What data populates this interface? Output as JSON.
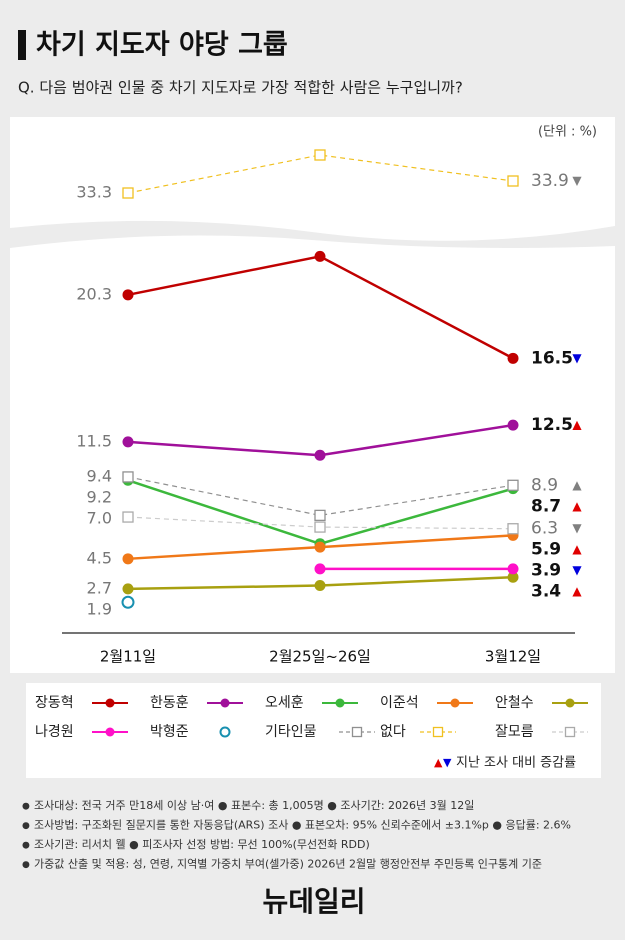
{
  "chart_data": {
    "type": "line",
    "title": "차기 지도자 야당 그룹",
    "subtitle": "Q. 다음 범야권 인물 중 차기 지도자로 가장 적합한 사람은 누구입니까?",
    "unit": "(단위 : %)",
    "categories": [
      "2월11일",
      "2월25일~26일",
      "3월12일"
    ],
    "ylim": [
      0,
      24
    ],
    "upper_ylim": [
      32,
      36
    ],
    "series": [
      {
        "name": "장동혁",
        "color": "#c00000",
        "marker": "circle",
        "values": [
          20.3,
          22.6,
          16.5
        ],
        "change": "▼",
        "change_color": "#0000dd"
      },
      {
        "name": "한동훈",
        "color": "#a0109a",
        "marker": "circle",
        "values": [
          11.5,
          10.7,
          12.5
        ],
        "change": "▲",
        "change_color": "#e00000"
      },
      {
        "name": "오세훈",
        "color": "#3cb83c",
        "marker": "circle",
        "values": [
          9.2,
          5.4,
          8.7
        ],
        "change": "▲",
        "change_color": "#e00000"
      },
      {
        "name": "이준석",
        "color": "#f07818",
        "marker": "circle",
        "values": [
          4.5,
          5.2,
          5.9
        ],
        "change": "▲",
        "change_color": "#e00000"
      },
      {
        "name": "안철수",
        "color": "#a8a010",
        "marker": "circle",
        "values": [
          2.7,
          2.9,
          3.4
        ],
        "change": "▲",
        "change_color": "#e00000"
      },
      {
        "name": "나경원",
        "color": "#ff10c8",
        "marker": "circle",
        "values": [
          null,
          3.9,
          3.9
        ],
        "change": "▼",
        "change_color": "#0000dd"
      },
      {
        "name": "박형준",
        "color": "#1890b0",
        "marker": "open-circle",
        "values": [
          1.9,
          null,
          null
        ]
      },
      {
        "name": "기타인물",
        "color": "#909090",
        "marker": "square",
        "dash": true,
        "values": [
          9.4,
          7.1,
          8.9
        ],
        "change": "▲",
        "change_color": "#808080"
      },
      {
        "name": "없다",
        "color": "#f0c020",
        "marker": "square",
        "dash": true,
        "axis": "upper",
        "values": [
          33.3,
          35.2,
          33.9
        ],
        "change": "▼",
        "change_color": "#808080"
      },
      {
        "name": "잘모름",
        "color": "#d8d8d8",
        "marker": "square",
        "dash": true,
        "values": [
          7.0,
          6.4,
          6.3
        ],
        "value_labels": [
          "7.0",
          null,
          "6.3"
        ],
        "change": "▼",
        "change_color": "#808080"
      }
    ],
    "legend_note": "지난 조사 대비 증감률",
    "notes": [
      "조사대상: 전국 거주 만18세 이상 남·여 ● 표본수: 총 1,005명 ● 조사기간: 2026년 3월 12일",
      "조사방법: 구조화된 질문지를 통한 자동응답(ARS) 조사 ● 표본오차: 95% 신뢰수준에서 ±3.1%p ● 응답률: 2.6%",
      "조사기관: 리서치 웰 ● 피조사자 선정 방법: 무선 100%(무선전화 RDD)",
      "가중값 산출 및 적용: 성, 연령, 지역별 가중치 부여(셀가중) 2026년 2월말 행정안전부 주민등록 인구통계 기준"
    ],
    "source": "뉴데일리"
  }
}
